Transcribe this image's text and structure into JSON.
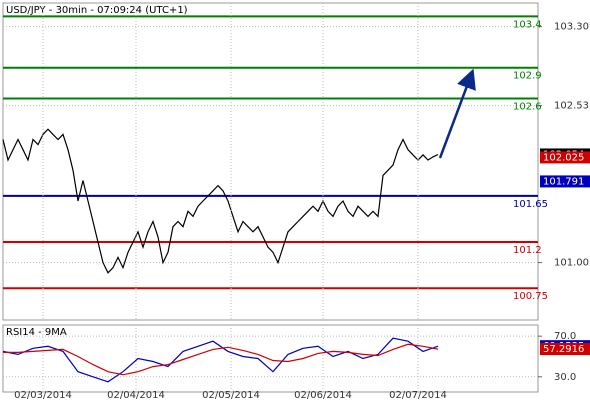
{
  "chart_data": [
    {
      "type": "line",
      "title": "USD/JPY - 30min - 07:09:24 (UTC+1)",
      "series": [
        {
          "color": "#000000",
          "values": [
            102.2,
            102.0,
            102.1,
            102.2,
            102.1,
            102.0,
            102.2,
            102.15,
            102.25,
            102.3,
            102.25,
            102.2,
            102.25,
            102.1,
            101.9,
            101.6,
            101.8,
            101.6,
            101.4,
            101.2,
            101.0,
            100.9,
            100.95,
            101.05,
            100.95,
            101.1,
            101.2,
            101.3,
            101.15,
            101.3,
            101.4,
            101.25,
            101.0,
            101.1,
            101.35,
            101.4,
            101.35,
            101.5,
            101.45,
            101.55,
            101.6,
            101.65,
            101.7,
            101.75,
            101.7,
            101.6,
            101.45,
            101.3,
            101.4,
            101.35,
            101.3,
            101.35,
            101.25,
            101.15,
            101.1,
            101.0,
            101.15,
            101.3,
            101.35,
            101.4,
            101.45,
            101.5,
            101.55,
            101.5,
            101.6,
            101.5,
            101.45,
            101.55,
            101.6,
            101.5,
            101.45,
            101.55,
            101.5,
            101.45,
            101.5,
            101.45,
            101.85,
            101.9,
            101.95,
            102.1,
            102.2,
            102.1,
            102.05,
            102.0,
            102.05,
            102.0,
            102.03,
            102.054
          ]
        }
      ],
      "xlim": [
        0,
        107
      ],
      "ylim": [
        100.44,
        103.56
      ],
      "yticks": [
        {
          "value": 103.3,
          "label": "103.30"
        },
        102.53,
        {
          "value": 101.0,
          "label": "101.00"
        }
      ],
      "grid": true,
      "levels": [
        {
          "value": 103.4,
          "color": "#008000"
        },
        {
          "value": 102.9,
          "color": "#008000"
        },
        {
          "value": 102.6,
          "color": "#008000"
        },
        {
          "value": 101.65,
          "color": "#0000a0"
        },
        {
          "value": 101.2,
          "color": "#d00000"
        },
        {
          "value": 100.75,
          "color": "#d00000"
        }
      ],
      "price_markers": [
        {
          "value": 102.025,
          "color": "#d00000"
        },
        {
          "value": 101.791,
          "color": "#0000c0"
        }
      ]
    },
    {
      "type": "line",
      "title": "RSI14 - 9MA",
      "series": [
        {
          "color": "#0000c0",
          "x": [
            0,
            3,
            6,
            9,
            12,
            15,
            18,
            21,
            24,
            27,
            30,
            33,
            36,
            39,
            42,
            45,
            48,
            51,
            54,
            57,
            60,
            63,
            66,
            69,
            72,
            75,
            78,
            81,
            84,
            87
          ],
          "values": [
            55,
            52,
            58,
            60,
            55,
            35,
            30,
            25,
            35,
            48,
            45,
            40,
            55,
            60,
            65,
            55,
            50,
            48,
            35,
            52,
            58,
            60,
            50,
            55,
            48,
            52,
            68,
            65,
            55,
            60.1535
          ]
        },
        {
          "color": "#d00000",
          "x": [
            0,
            3,
            6,
            9,
            12,
            15,
            18,
            21,
            24,
            27,
            30,
            33,
            36,
            39,
            42,
            45,
            48,
            51,
            54,
            57,
            60,
            63,
            66,
            69,
            72,
            75,
            78,
            81,
            84,
            87
          ],
          "values": [
            54,
            54,
            55,
            56,
            57,
            50,
            42,
            35,
            32,
            35,
            40,
            42,
            47,
            52,
            57,
            59,
            56,
            52,
            46,
            45,
            48,
            53,
            55,
            54,
            52,
            51,
            57,
            62,
            60,
            57.2916
          ]
        }
      ],
      "xlim": [
        0,
        107
      ],
      "ylim": [
        15,
        81
      ],
      "yticks": [
        {
          "value": 70,
          "label": "70.0"
        },
        {
          "value": 30,
          "label": "30.0"
        }
      ],
      "xticks": [
        {
          "value": 8,
          "label": "02/03/2014"
        },
        {
          "value": 26.6,
          "label": "02/04/2014"
        },
        {
          "value": 45.6,
          "label": "02/05/2014"
        },
        {
          "value": 64,
          "label": "02/06/2014"
        },
        {
          "value": 83,
          "label": "02/07/2014"
        }
      ],
      "grid": true
    }
  ]
}
